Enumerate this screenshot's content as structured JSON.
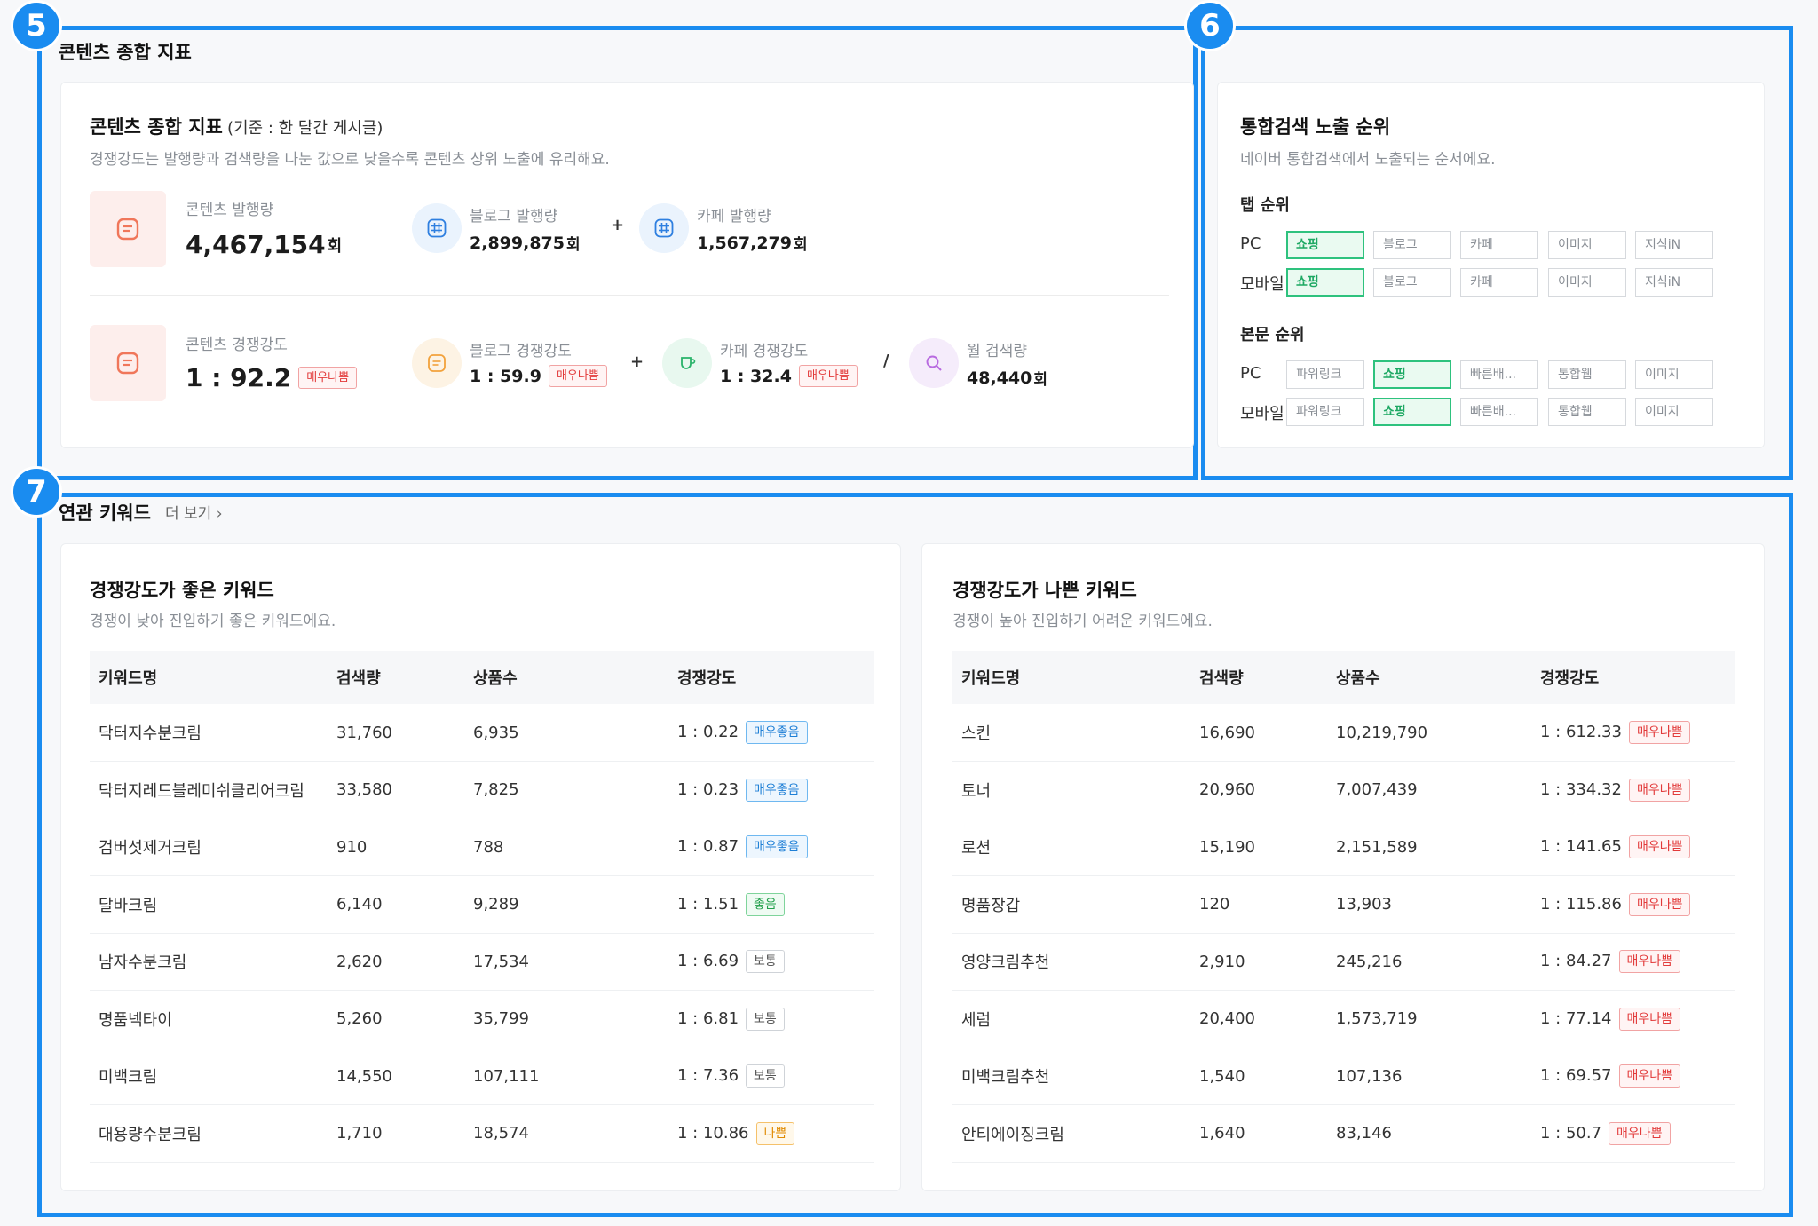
{
  "badges": [
    "5",
    "6",
    "7"
  ],
  "section5": {
    "title": "콘텐츠 종합 지표",
    "card_title": "콘텐츠 종합 지표",
    "card_title_sub": "(기준 : 한 달간 게시글)",
    "desc": "경쟁강도는 발행량과 검색량을 나눈 값으로 낮을수록 콘텐츠 상위 노출에 유리해요.",
    "publish": {
      "total_label": "콘텐츠 발행량",
      "total_value": "4,467,154",
      "total_unit": "회",
      "blog_label": "블로그 발행량",
      "blog_value": "2,899,875",
      "blog_unit": "회",
      "plus": "+",
      "cafe_label": "카페 발행량",
      "cafe_value": "1,567,279",
      "cafe_unit": "회"
    },
    "competition": {
      "total_label": "콘텐츠 경쟁강도",
      "total_value": "1 : 92.2",
      "total_tag": "매우나쁨",
      "blog_label": "블로그 경쟁강도",
      "blog_value": "1 : 59.9",
      "blog_tag": "매우나쁨",
      "plus": "+",
      "cafe_label": "카페 경쟁강도",
      "cafe_value": "1 : 32.4",
      "cafe_tag": "매우나쁨",
      "divide": "/",
      "search_label": "월 검색량",
      "search_value": "48,440",
      "search_unit": "회"
    }
  },
  "section6": {
    "card_title": "통합검색 노출 순위",
    "desc": "네이버 통합검색에서 노출되는 순서에요.",
    "tab_rank": {
      "label": "탭 순위",
      "rows": [
        {
          "device": "PC",
          "chips": [
            "쇼핑",
            "블로그",
            "카페",
            "이미지",
            "지식iN"
          ],
          "active": 0
        },
        {
          "device": "모바일",
          "chips": [
            "쇼핑",
            "블로그",
            "카페",
            "이미지",
            "지식iN"
          ],
          "active": 0
        }
      ]
    },
    "body_rank": {
      "label": "본문 순위",
      "rows": [
        {
          "device": "PC",
          "chips": [
            "파워링크",
            "쇼핑",
            "빠른배...",
            "통합웹",
            "이미지"
          ],
          "active": 1
        },
        {
          "device": "모바일",
          "chips": [
            "파워링크",
            "쇼핑",
            "빠른배...",
            "통합웹",
            "이미지"
          ],
          "active": 1
        }
      ]
    }
  },
  "section7": {
    "title": "연관 키워드",
    "more": "더 보기 ›",
    "good": {
      "title": "경쟁강도가 좋은 키워드",
      "desc": "경쟁이 낮아 진입하기 좋은 키워드에요.",
      "headers": [
        "키워드명",
        "검색량",
        "상품수",
        "경쟁강도"
      ],
      "rows": [
        {
          "keyword": "닥터지수분크림",
          "search": "31,760",
          "products": "6,935",
          "ratio": "1 : 0.22",
          "tag": "매우좋음",
          "level": "vgood"
        },
        {
          "keyword": "닥터지레드블레미쉬클리어크림",
          "search": "33,580",
          "products": "7,825",
          "ratio": "1 : 0.23",
          "tag": "매우좋음",
          "level": "vgood"
        },
        {
          "keyword": "검버섯제거크림",
          "search": "910",
          "products": "788",
          "ratio": "1 : 0.87",
          "tag": "매우좋음",
          "level": "vgood"
        },
        {
          "keyword": "달바크림",
          "search": "6,140",
          "products": "9,289",
          "ratio": "1 : 1.51",
          "tag": "좋음",
          "level": "good"
        },
        {
          "keyword": "남자수분크림",
          "search": "2,620",
          "products": "17,534",
          "ratio": "1 : 6.69",
          "tag": "보통",
          "level": "norm"
        },
        {
          "keyword": "명품넥타이",
          "search": "5,260",
          "products": "35,799",
          "ratio": "1 : 6.81",
          "tag": "보통",
          "level": "norm"
        },
        {
          "keyword": "미백크림",
          "search": "14,550",
          "products": "107,111",
          "ratio": "1 : 7.36",
          "tag": "보통",
          "level": "norm"
        },
        {
          "keyword": "대용량수분크림",
          "search": "1,710",
          "products": "18,574",
          "ratio": "1 : 10.86",
          "tag": "나쁨",
          "level": "bad"
        }
      ]
    },
    "bad": {
      "title": "경쟁강도가 나쁜 키워드",
      "desc": "경쟁이 높아 진입하기 어려운 키워드에요.",
      "headers": [
        "키워드명",
        "검색량",
        "상품수",
        "경쟁강도"
      ],
      "rows": [
        {
          "keyword": "스킨",
          "search": "16,690",
          "products": "10,219,790",
          "ratio": "1 : 612.33",
          "tag": "매우나쁨",
          "level": "vbad"
        },
        {
          "keyword": "토너",
          "search": "20,960",
          "products": "7,007,439",
          "ratio": "1 : 334.32",
          "tag": "매우나쁨",
          "level": "vbad"
        },
        {
          "keyword": "로션",
          "search": "15,190",
          "products": "2,151,589",
          "ratio": "1 : 141.65",
          "tag": "매우나쁨",
          "level": "vbad"
        },
        {
          "keyword": "명품장갑",
          "search": "120",
          "products": "13,903",
          "ratio": "1 : 115.86",
          "tag": "매우나쁨",
          "level": "vbad"
        },
        {
          "keyword": "영양크림추천",
          "search": "2,910",
          "products": "245,216",
          "ratio": "1 : 84.27",
          "tag": "매우나쁨",
          "level": "vbad"
        },
        {
          "keyword": "세럼",
          "search": "20,400",
          "products": "1,573,719",
          "ratio": "1 : 77.14",
          "tag": "매우나쁨",
          "level": "vbad"
        },
        {
          "keyword": "미백크림추천",
          "search": "1,540",
          "products": "107,136",
          "ratio": "1 : 69.57",
          "tag": "매우나쁨",
          "level": "vbad"
        },
        {
          "keyword": "안티에이징크림",
          "search": "1,640",
          "products": "83,146",
          "ratio": "1 : 50.7",
          "tag": "매우나쁨",
          "level": "vbad"
        }
      ]
    }
  },
  "colors": {
    "accent": "#1a8cf0",
    "active_chip": "#2ec27e",
    "danger": "#e23a3a"
  }
}
